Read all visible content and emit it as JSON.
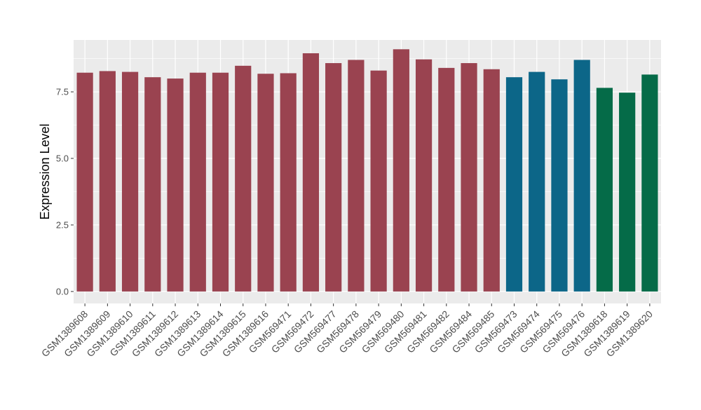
{
  "chart_data": {
    "type": "bar",
    "title": "",
    "xlabel": "",
    "ylabel": "Expression Level",
    "ylim": [
      -0.45,
      9.45
    ],
    "yticks": [
      0.0,
      2.5,
      5.0,
      7.5
    ],
    "ytick_labels": [
      "0.0",
      "2.5",
      "5.0",
      "7.5"
    ],
    "grid": true,
    "legend": "none",
    "panel_color": "#ebebeb",
    "categories": [
      "GSM1389608",
      "GSM1389609",
      "GSM1389610",
      "GSM1389611",
      "GSM1389612",
      "GSM1389613",
      "GSM1389614",
      "GSM1389615",
      "GSM1389616",
      "GSM569471",
      "GSM569472",
      "GSM569477",
      "GSM569478",
      "GSM569479",
      "GSM569480",
      "GSM569481",
      "GSM569482",
      "GSM569484",
      "GSM569485",
      "GSM569473",
      "GSM569474",
      "GSM569475",
      "GSM569476",
      "GSM1389618",
      "GSM1389619",
      "GSM1389620"
    ],
    "values": [
      8.22,
      8.28,
      8.25,
      8.05,
      8.0,
      8.22,
      8.22,
      8.48,
      8.18,
      8.2,
      8.95,
      8.58,
      8.7,
      8.3,
      9.1,
      8.72,
      8.4,
      8.58,
      8.35,
      8.05,
      8.25,
      7.97,
      8.7,
      7.65,
      7.47,
      8.15
    ],
    "bar_colors": [
      "#9a4350",
      "#9a4350",
      "#9a4350",
      "#9a4350",
      "#9a4350",
      "#9a4350",
      "#9a4350",
      "#9a4350",
      "#9a4350",
      "#9a4350",
      "#9a4350",
      "#9a4350",
      "#9a4350",
      "#9a4350",
      "#9a4350",
      "#9a4350",
      "#9a4350",
      "#9a4350",
      "#9a4350",
      "#0c6688",
      "#0c6688",
      "#0c6688",
      "#0c6688",
      "#056b48",
      "#056b48",
      "#056b48"
    ]
  }
}
